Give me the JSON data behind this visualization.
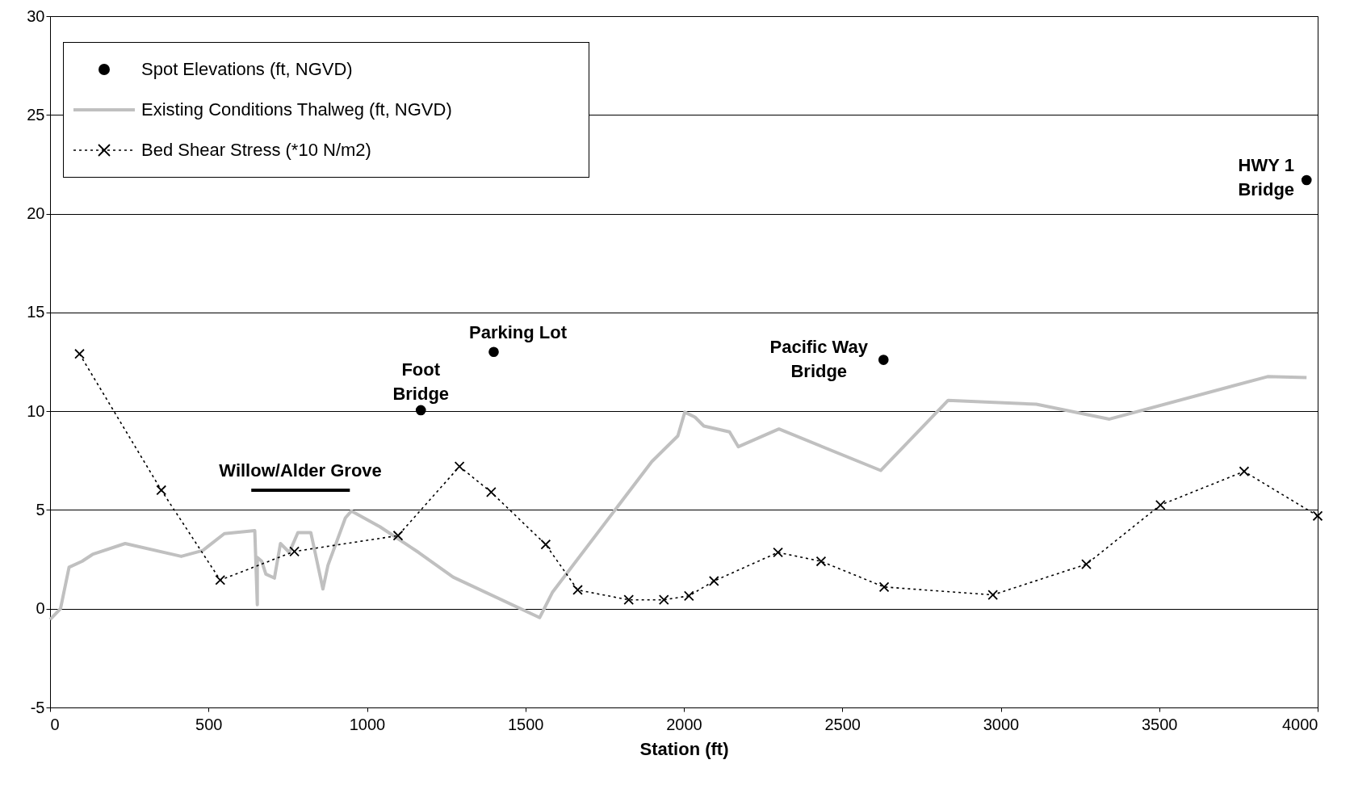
{
  "chart_data": {
    "type": "line",
    "xlabel": "Station (ft)",
    "xlim": [
      0,
      4000
    ],
    "xticks": [
      0,
      500,
      1000,
      1500,
      2000,
      2500,
      3000,
      3500,
      4000
    ],
    "ylim": [
      -5,
      30
    ],
    "yticks": [
      -5,
      0,
      5,
      10,
      15,
      20,
      25,
      30
    ],
    "grid": "y",
    "legend": "top left",
    "series": [
      {
        "name": "Existing Conditions Thalweg (ft, NGVD)",
        "color": "#c0c0c0",
        "line_style": "solid",
        "marker": "none",
        "x": [
          0,
          33,
          60,
          101,
          134,
          237,
          414,
          482,
          550,
          646,
          654,
          654,
          668,
          681,
          708,
          727,
          755,
          782,
          823,
          861,
          877,
          932,
          951,
          1041,
          1163,
          1272,
          1545,
          1586,
          1899,
          1981,
          2003,
          2035,
          2063,
          2144,
          2172,
          2300,
          2621,
          2834,
          3112,
          3343,
          3842,
          3965
        ],
        "values": [
          -0.55,
          0,
          2.1,
          2.4,
          2.75,
          3.3,
          2.65,
          2.95,
          3.8,
          3.95,
          0.2,
          2.6,
          2.4,
          1.75,
          1.55,
          3.3,
          2.85,
          3.85,
          3.85,
          1.0,
          2.2,
          4.6,
          4.95,
          4.15,
          2.85,
          1.6,
          -0.45,
          0.85,
          7.45,
          8.75,
          9.95,
          9.7,
          9.25,
          8.95,
          8.2,
          9.1,
          7.0,
          10.55,
          10.35,
          9.6,
          11.75,
          11.7
        ]
      },
      {
        "name": "Bed Shear Stress (*10 N/m2)",
        "color": "#000000",
        "line_style": "dotted",
        "marker": "cross",
        "x": [
          93,
          351,
          537,
          771,
          1098,
          1292,
          1392,
          1564,
          1665,
          1826,
          1937,
          2016,
          2095,
          2297,
          2433,
          2632,
          2975,
          3270,
          3504,
          3768,
          4000
        ],
        "values": [
          12.9,
          6.0,
          1.45,
          2.9,
          3.7,
          7.2,
          5.9,
          3.25,
          0.95,
          0.45,
          0.45,
          0.65,
          1.4,
          2.85,
          2.4,
          1.1,
          0.7,
          2.25,
          5.25,
          6.95,
          4.7
        ]
      },
      {
        "name": "Spot Elevations (ft, NGVD)",
        "type": "scatter",
        "color": "#000000",
        "marker": "circle",
        "x": [
          1170,
          1400,
          2630,
          3965
        ],
        "values": [
          10.05,
          13.0,
          12.6,
          21.7
        ]
      },
      {
        "color": "#000000",
        "line_style": "solid",
        "marker": "none",
        "x": [
          635,
          946
        ],
        "values": [
          6.0,
          6.0
        ]
      }
    ],
    "annotations": [
      {
        "text": "Foot\nBridge",
        "x": 1170,
        "y": 10.05
      },
      {
        "text": "Parking Lot",
        "x": 1400,
        "y": 13.0
      },
      {
        "text": "Pacific Way\nBridge",
        "x": 2630,
        "y": 12.6
      },
      {
        "text": "HWY 1\nBridge",
        "x": 3965,
        "y": 21.7
      },
      {
        "text": "Willow/Alder Grove",
        "x": 790,
        "y": 6.0
      }
    ]
  }
}
